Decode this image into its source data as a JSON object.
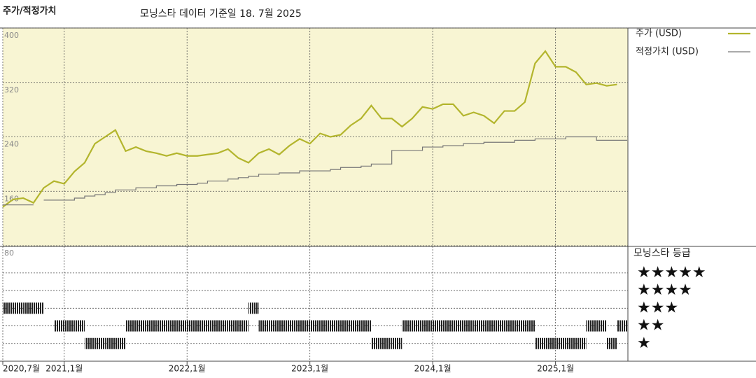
{
  "chart_data": [
    {
      "type": "line",
      "title": "주가/적정가치",
      "subtitle": "모닝스타 데이터 기준일 18. 7월 2025",
      "x": [
        "2020-07",
        "2020-08",
        "2020-09",
        "2020-10",
        "2020-11",
        "2020-12",
        "2021-01",
        "2021-02",
        "2021-03",
        "2021-04",
        "2021-05",
        "2021-06",
        "2021-07",
        "2021-08",
        "2021-09",
        "2021-10",
        "2021-11",
        "2021-12",
        "2022-01",
        "2022-02",
        "2022-03",
        "2022-04",
        "2022-05",
        "2022-06",
        "2022-07",
        "2022-08",
        "2022-09",
        "2022-10",
        "2022-11",
        "2022-12",
        "2023-01",
        "2023-02",
        "2023-03",
        "2023-04",
        "2023-05",
        "2023-06",
        "2023-07",
        "2023-08",
        "2023-09",
        "2023-10",
        "2023-11",
        "2023-12",
        "2024-01",
        "2024-02",
        "2024-03",
        "2024-04",
        "2024-05",
        "2024-06",
        "2024-07",
        "2024-08",
        "2024-09",
        "2024-10",
        "2024-11",
        "2024-12",
        "2025-01",
        "2025-02",
        "2025-03",
        "2025-04",
        "2025-05",
        "2025-06",
        "2025-07"
      ],
      "series": [
        {
          "name": "주가 (USD)",
          "color": "#b3b52d",
          "step": false,
          "values": [
            137,
            148,
            150,
            143,
            165,
            175,
            171,
            189,
            202,
            230,
            240,
            250,
            219,
            225,
            219,
            216,
            212,
            216,
            212,
            212,
            214,
            216,
            222,
            209,
            202,
            216,
            222,
            214,
            227,
            237,
            230,
            245,
            240,
            243,
            257,
            267,
            286,
            267,
            267,
            255,
            267,
            284,
            281,
            288,
            288,
            271,
            276,
            271,
            260,
            278,
            278,
            291,
            348,
            366,
            343,
            343,
            335,
            317,
            319,
            315,
            317
          ]
        },
        {
          "name": "적정가치 (USD)",
          "color": "#777777",
          "step": true,
          "values": [
            140,
            140,
            140,
            null,
            147,
            147,
            147,
            150,
            153,
            155,
            158,
            162,
            162,
            165,
            165,
            168,
            168,
            170,
            170,
            172,
            175,
            175,
            178,
            180,
            182,
            185,
            185,
            187,
            187,
            190,
            190,
            190,
            192,
            195,
            195,
            197,
            200,
            200,
            220,
            220,
            220,
            225,
            225,
            227,
            227,
            230,
            230,
            232,
            232,
            232,
            235,
            235,
            237,
            237,
            237,
            240,
            240,
            240,
            235,
            235,
            235
          ]
        }
      ],
      "xlim": [
        "2020-07",
        "2025-08"
      ],
      "xticks": [
        {
          "value": "2020-07",
          "label": "2020,7월"
        },
        {
          "value": "2021-01",
          "label": "2021,1월"
        },
        {
          "value": "2022-01",
          "label": "2022,1월"
        },
        {
          "value": "2023-01",
          "label": "2023,1월"
        },
        {
          "value": "2024-01",
          "label": "2024,1월"
        },
        {
          "value": "2025-01",
          "label": "2025,1월"
        }
      ],
      "ylim": [
        80,
        400
      ],
      "yticks": [
        80,
        160,
        240,
        320,
        400
      ],
      "grid": true,
      "legend": "right"
    },
    {
      "type": "rating",
      "title": "모닝스타 등급",
      "color": "#222222",
      "x": [
        "2020-07",
        "2020-08",
        "2020-09",
        "2020-10",
        "2020-11",
        "2020-12",
        "2021-01",
        "2021-02",
        "2021-03",
        "2021-04",
        "2021-05",
        "2021-06",
        "2021-07",
        "2021-08",
        "2021-09",
        "2021-10",
        "2021-11",
        "2021-12",
        "2022-01",
        "2022-02",
        "2022-03",
        "2022-04",
        "2022-05",
        "2022-06",
        "2022-07",
        "2022-08",
        "2022-09",
        "2022-10",
        "2022-11",
        "2022-12",
        "2023-01",
        "2023-02",
        "2023-03",
        "2023-04",
        "2023-05",
        "2023-06",
        "2023-07",
        "2023-08",
        "2023-09",
        "2023-10",
        "2023-11",
        "2023-12",
        "2024-01",
        "2024-02",
        "2024-03",
        "2024-04",
        "2024-05",
        "2024-06",
        "2024-07",
        "2024-08",
        "2024-09",
        "2024-10",
        "2024-11",
        "2024-12",
        "2025-01",
        "2025-02",
        "2025-03",
        "2025-04",
        "2025-05",
        "2025-06",
        "2025-07"
      ],
      "values": [
        3,
        3,
        3,
        3,
        null,
        2,
        2,
        2,
        1,
        1,
        1,
        1,
        2,
        2,
        2,
        2,
        2,
        2,
        2,
        2,
        2,
        2,
        2,
        2,
        3,
        2,
        2,
        2,
        2,
        2,
        2,
        2,
        2,
        2,
        2,
        2,
        1,
        1,
        1,
        2,
        2,
        2,
        2,
        2,
        2,
        2,
        2,
        2,
        2,
        2,
        2,
        2,
        1,
        1,
        1,
        1,
        1,
        2,
        2,
        1,
        2
      ],
      "ylim": [
        0,
        6.5
      ],
      "yticks": [
        {
          "value": 1,
          "label": "★"
        },
        {
          "value": 2,
          "label": "★★"
        },
        {
          "value": 3,
          "label": "★★★"
        },
        {
          "value": 4,
          "label": "★★★★"
        },
        {
          "value": 5,
          "label": "★★★★★"
        }
      ]
    }
  ]
}
